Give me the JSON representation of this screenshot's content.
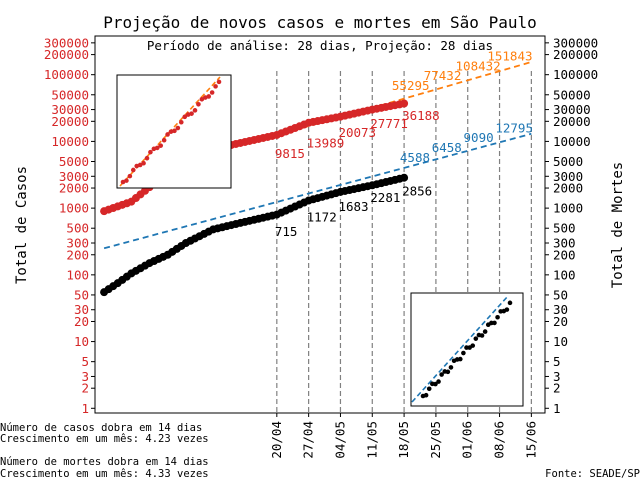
{
  "colors": {
    "cases": "#d62728",
    "deaths": "#000000",
    "cases_projection": "#ff7f0e",
    "deaths_projection": "#1f77b4",
    "reference_line": "#808080"
  },
  "chart_data": {
    "type": "scatter",
    "title": "Projeção de novos casos e mortes em São Paulo",
    "subtitle": "Período de análise: 28 dias, Projeção: 28 dias",
    "ylabel_left": "Total de Casos",
    "ylabel_right": "Total de Mortes",
    "yscale": "log",
    "ylim": [
      0.85,
      380000
    ],
    "yticks": [
      {
        "value": 1,
        "label": "1"
      },
      {
        "value": 2,
        "label": "2"
      },
      {
        "value": 3,
        "label": "3"
      },
      {
        "value": 5,
        "label": "5"
      },
      {
        "value": 10,
        "label": "10"
      },
      {
        "value": 20,
        "label": "20"
      },
      {
        "value": 30,
        "label": "30"
      },
      {
        "value": 50,
        "label": "50"
      },
      {
        "value": 100,
        "label": "100"
      },
      {
        "value": 200,
        "label": "200"
      },
      {
        "value": 300,
        "label": "300"
      },
      {
        "value": 500,
        "label": "500"
      },
      {
        "value": 1000,
        "label": "1000"
      },
      {
        "value": 2000,
        "label": "2000"
      },
      {
        "value": 3000,
        "label": "3000"
      },
      {
        "value": 5000,
        "label": "5000"
      },
      {
        "value": 10000,
        "label": "10000"
      },
      {
        "value": 20000,
        "label": "20000"
      },
      {
        "value": 30000,
        "label": "30000"
      },
      {
        "value": 50000,
        "label": "50000"
      },
      {
        "value": 100000,
        "label": "100000"
      },
      {
        "value": 200000,
        "label": "200000"
      },
      {
        "value": 300000,
        "label": "300000"
      }
    ],
    "xlim": [
      "2020-03-11",
      "2020-06-18"
    ],
    "xticks": [
      "20/04",
      "27/04",
      "04/05",
      "11/05",
      "18/05",
      "25/05",
      "01/06",
      "08/06",
      "15/06"
    ],
    "xtick_dates": [
      "2020-04-20",
      "2020-04-27",
      "2020-05-04",
      "2020-05-11",
      "2020-05-18",
      "2020-05-25",
      "2020-06-01",
      "2020-06-08",
      "2020-06-15"
    ],
    "start_date": "2020-03-13",
    "end_date": "2020-05-18",
    "series": [
      {
        "role": "cases",
        "kind": "points",
        "start_value": 900,
        "anchors": [
          [
            0,
            900
          ],
          [
            6,
            1250
          ],
          [
            14,
            3400
          ],
          [
            24,
            7700
          ],
          [
            38,
            12500
          ],
          [
            45,
            19000
          ],
          [
            52,
            23500
          ],
          [
            59,
            30000
          ],
          [
            66,
            37000
          ]
        ]
      },
      {
        "role": "deaths",
        "kind": "points",
        "start_value": 55,
        "anchors": [
          [
            0,
            55
          ],
          [
            3,
            75
          ],
          [
            6,
            105
          ],
          [
            10,
            150
          ],
          [
            14,
            200
          ],
          [
            18,
            300
          ],
          [
            24,
            480
          ],
          [
            30,
            600
          ],
          [
            38,
            800
          ],
          [
            45,
            1300
          ],
          [
            52,
            1750
          ],
          [
            59,
            2200
          ],
          [
            66,
            2856
          ]
        ]
      },
      {
        "role": "cases_projection",
        "kind": "dashed",
        "from": [
          "2020-04-13",
          9000
        ],
        "to": [
          "2020-06-15",
          155000
        ]
      },
      {
        "role": "deaths_projection",
        "kind": "dashed",
        "from": [
          "2020-03-13",
          250
        ],
        "to": [
          "2020-06-15",
          13000
        ]
      }
    ],
    "annotations": {
      "cases": [
        {
          "date": "2020-04-20",
          "value": 9815,
          "label": "9815"
        },
        {
          "date": "2020-04-27",
          "value": 13989,
          "label": "13989"
        },
        {
          "date": "2020-05-04",
          "value": 20073,
          "label": "20073"
        },
        {
          "date": "2020-05-11",
          "value": 27771,
          "label": "27771"
        },
        {
          "date": "2020-05-18",
          "value": 36188,
          "label": "36188"
        }
      ],
      "deaths": [
        {
          "date": "2020-04-20",
          "value": 715,
          "label": "715"
        },
        {
          "date": "2020-04-27",
          "value": 1172,
          "label": "1172"
        },
        {
          "date": "2020-05-04",
          "value": 1683,
          "label": "1683"
        },
        {
          "date": "2020-05-11",
          "value": 2281,
          "label": "2281"
        },
        {
          "date": "2020-05-18",
          "value": 2856,
          "label": "2856"
        }
      ],
      "cases_projection": [
        {
          "date": "2020-05-25",
          "value": 55295,
          "label": "55295"
        },
        {
          "date": "2020-06-01",
          "value": 77432,
          "label": "77432"
        },
        {
          "date": "2020-06-08",
          "value": 108432,
          "label": "108432"
        },
        {
          "date": "2020-06-15",
          "value": 151843,
          "label": "151843"
        }
      ],
      "deaths_projection": [
        {
          "date": "2020-05-25",
          "value": 4588,
          "label": "4588"
        },
        {
          "date": "2020-06-01",
          "value": 6458,
          "label": "6458"
        },
        {
          "date": "2020-06-08",
          "value": 9090,
          "label": "9090"
        },
        {
          "date": "2020-06-15",
          "value": 12795,
          "label": "12795"
        }
      ]
    }
  },
  "footer": {
    "cases_doubling": "Número de casos dobra em 14 dias",
    "cases_growth": "Crescimento em um mês: 4.23 vezes",
    "deaths_doubling": "Número de mortes dobra em 14 dias",
    "deaths_growth": "Crescimento em um mês: 4.33 vezes",
    "source": "Fonte: SEADE/SP"
  }
}
